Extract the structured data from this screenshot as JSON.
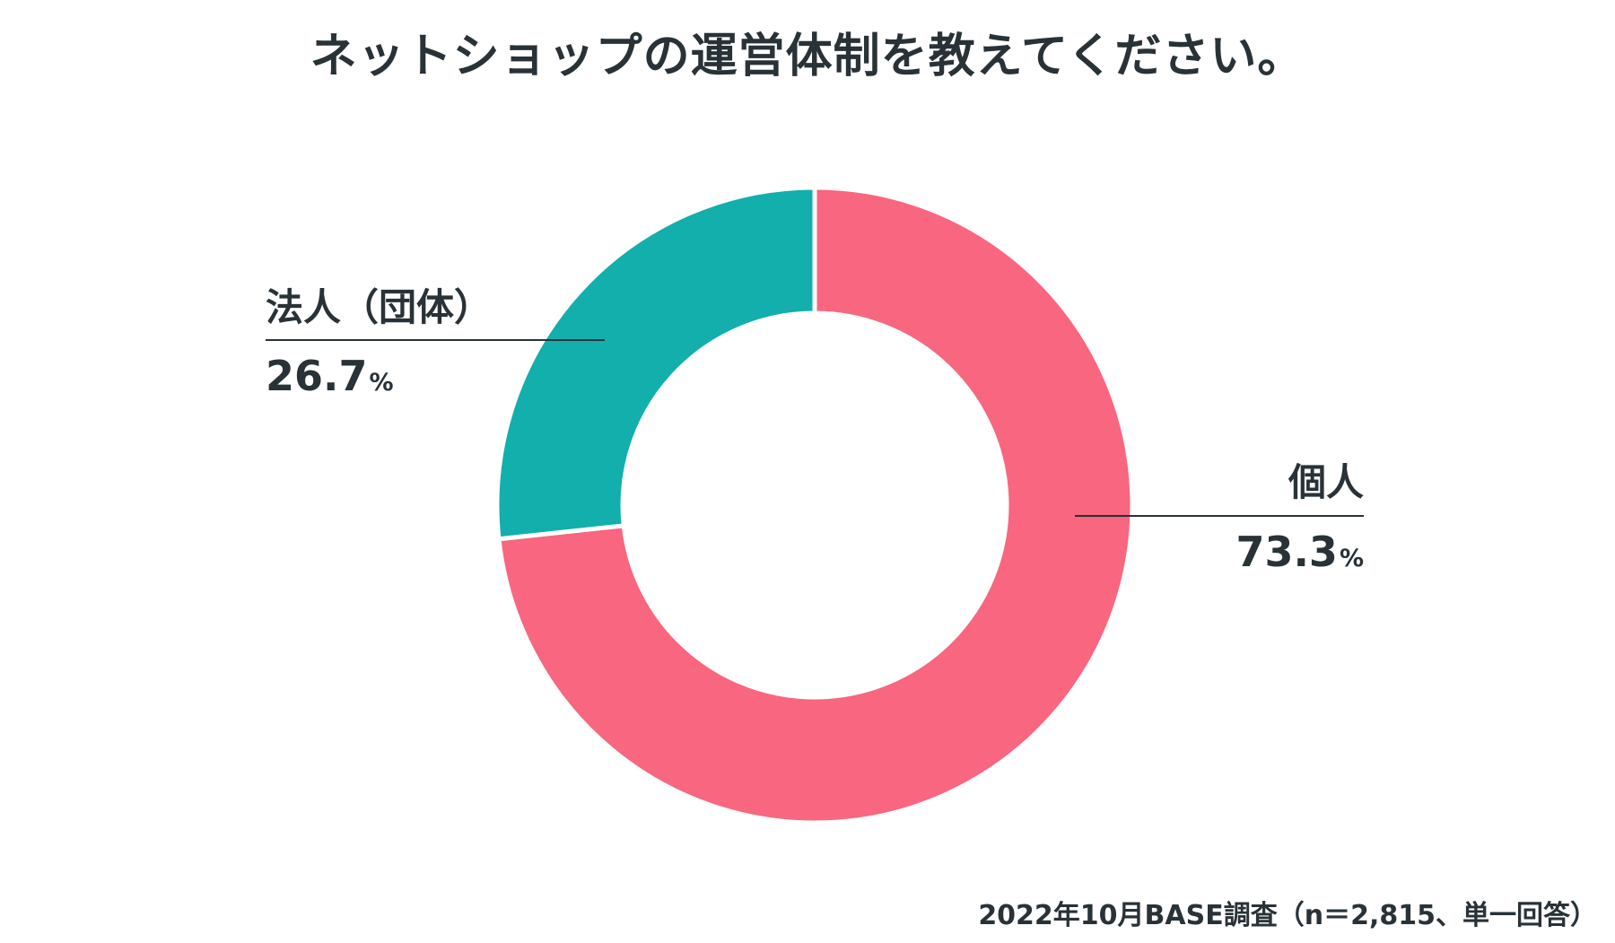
{
  "chart_data": {
    "type": "pie",
    "title": "ネットショップの運営体制を教えてください。",
    "donut": true,
    "start_angle_deg": 0,
    "direction": "clockwise",
    "slices": [
      {
        "label": "個人",
        "value": 73.3,
        "value_text": "73.3",
        "unit": "%",
        "color": "#f8667f"
      },
      {
        "label": "法人（団体）",
        "value": 26.7,
        "value_text": "26.7",
        "unit": "%",
        "color": "#12afac"
      }
    ],
    "note": "2022年10月BASE調査（n＝2,815、単一回答）"
  },
  "colors": {
    "text": "#283237",
    "background": "#ffffff"
  }
}
